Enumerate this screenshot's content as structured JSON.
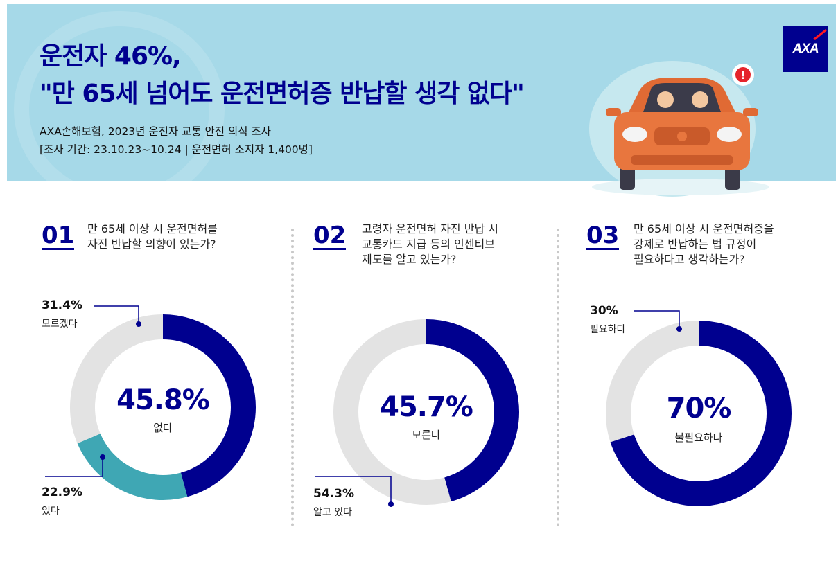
{
  "header": {
    "title_line1": "운전자 46%,",
    "title_line2": "\"만 65세 넘어도 운전면허증 반납할 생각 없다\"",
    "subtitle_line1": "AXA손해보험, 2023년 운전자 교통 안전 의식 조사",
    "subtitle_line2": "[조사 기간: 23.10.23~10.24 | 운전면허 소지자 1,400명]",
    "logo_text": "AXA",
    "alert_glyph": "!"
  },
  "colors": {
    "navy": "#00008f",
    "teal": "#3fa7b4",
    "gray": "#e3e3e3",
    "header_bg": "#a6d9e8"
  },
  "chart_data": [
    {
      "type": "pie",
      "number": "01",
      "question": [
        "만 65세 이상 시 운전면허를",
        "자진 반납할 의향이 있는가?"
      ],
      "center": {
        "value": "45.8%",
        "label": "없다"
      },
      "slices": [
        {
          "label": "없다",
          "value": 45.8,
          "color": "#00008f"
        },
        {
          "label": "있다",
          "value": 22.9,
          "color": "#3fa7b4"
        },
        {
          "label": "모르겠다",
          "value": 31.4,
          "color": "#e3e3e3"
        }
      ],
      "callouts": [
        {
          "pct": "31.4%",
          "label": "모르겠다"
        },
        {
          "pct": "22.9%",
          "label": "있다"
        }
      ]
    },
    {
      "type": "pie",
      "number": "02",
      "question": [
        "고령자 운전면허 자진 반납 시",
        "교통카드 지급 등의 인센티브",
        "제도를 알고 있는가?"
      ],
      "center": {
        "value": "45.7%",
        "label": "모른다"
      },
      "slices": [
        {
          "label": "모른다",
          "value": 45.7,
          "color": "#00008f"
        },
        {
          "label": "알고 있다",
          "value": 54.3,
          "color": "#e3e3e3"
        }
      ],
      "callouts": [
        {
          "pct": "54.3%",
          "label": "알고 있다"
        }
      ]
    },
    {
      "type": "pie",
      "number": "03",
      "question": [
        "만 65세 이상 시 운전면허증을",
        "강제로 반납하는 법 규정이",
        "필요하다고 생각하는가?"
      ],
      "center": {
        "value": "70%",
        "label": "불필요하다"
      },
      "slices": [
        {
          "label": "불필요하다",
          "value": 70,
          "color": "#00008f"
        },
        {
          "label": "필요하다",
          "value": 30,
          "color": "#e3e3e3"
        }
      ],
      "callouts": [
        {
          "pct": "30%",
          "label": "필요하다"
        }
      ]
    }
  ]
}
